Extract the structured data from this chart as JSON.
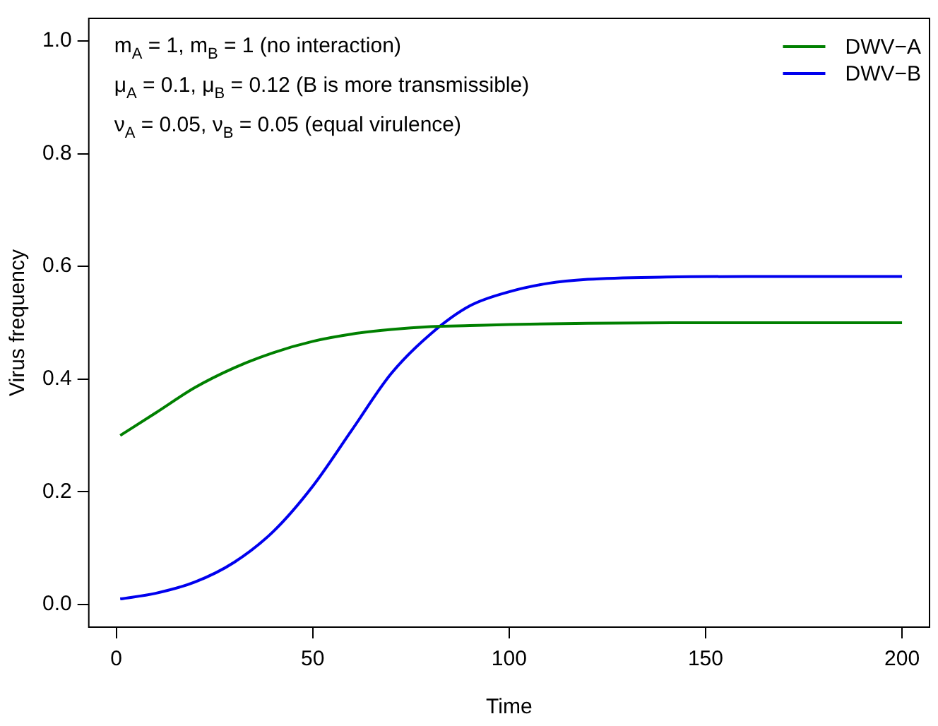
{
  "chart_data": {
    "type": "line",
    "xlabel": "Time",
    "ylabel": "Virus frequency",
    "annotations": [
      "m$_{A}$ = 1, m$_{B}$ = 1 (no interaction)",
      "μ$_{A}$ = 0.1, μ$_{B}$ = 0.12 (B is more transmissible)",
      "ν$_{A}$ = 0.05, ν$_{B}$ = 0.05 (equal virulence)"
    ],
    "series": [
      {
        "name": "DWV−A",
        "color": "#008000",
        "x": [
          1,
          10,
          20,
          30,
          40,
          50,
          60,
          70,
          80,
          90,
          100,
          120,
          150,
          200
        ],
        "values": [
          0.3,
          0.34,
          0.385,
          0.42,
          0.447,
          0.467,
          0.48,
          0.488,
          0.493,
          0.495,
          0.497,
          0.499,
          0.5,
          0.5
        ]
      },
      {
        "name": "DWV−B",
        "color": "#0000ee",
        "x": [
          1,
          10,
          20,
          30,
          40,
          50,
          60,
          70,
          80,
          90,
          100,
          110,
          120,
          140,
          160,
          200
        ],
        "values": [
          0.01,
          0.02,
          0.04,
          0.075,
          0.13,
          0.21,
          0.31,
          0.41,
          0.48,
          0.53,
          0.555,
          0.57,
          0.577,
          0.581,
          0.582,
          0.582
        ]
      }
    ],
    "xlim": [
      -7,
      207
    ],
    "xticks": [
      0,
      50,
      100,
      150,
      200
    ],
    "ylim": [
      -0.04,
      1.04
    ],
    "yticks": [
      {
        "value": 0,
        "label": "0.0"
      },
      0.2,
      0.4,
      0.6,
      0.8,
      {
        "value": 1,
        "label": "1.0"
      }
    ],
    "legend": "top right",
    "grid": false,
    "marker": "none",
    "line_style": "solid"
  }
}
